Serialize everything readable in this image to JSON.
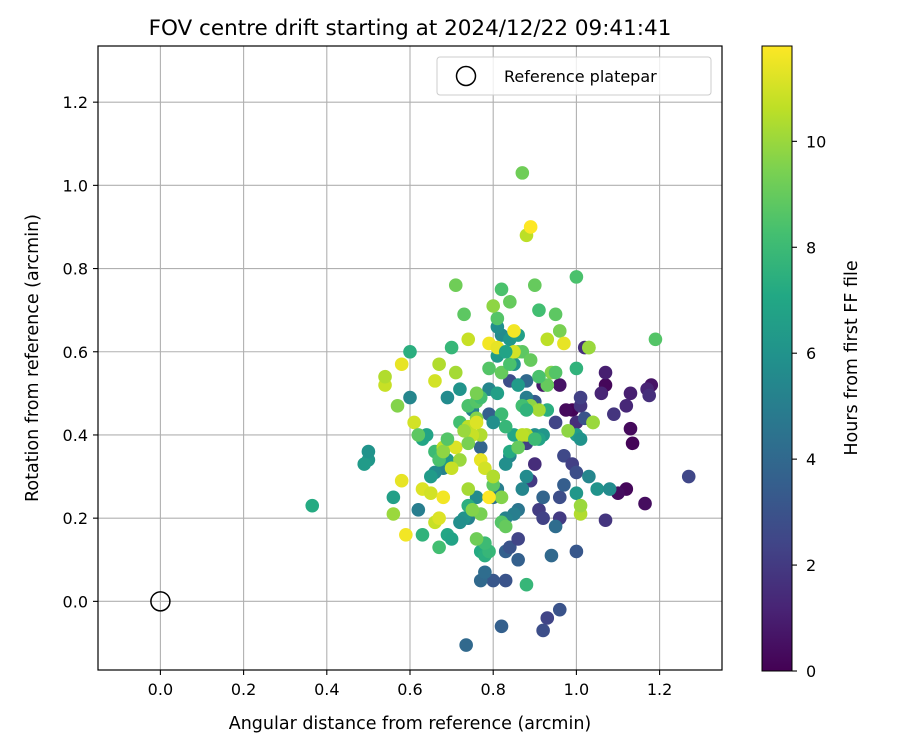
{
  "chart_data": {
    "type": "scatter",
    "title": "FOV centre drift starting at 2024/12/22 09:41:41",
    "xlabel": "Angular distance from reference (arcmin)",
    "ylabel": "Rotation from reference (arcmin)",
    "xlim": [
      -0.15,
      1.35
    ],
    "ylim": [
      -0.165,
      1.335
    ],
    "xticks": [
      "0.0",
      "0.2",
      "0.4",
      "0.6",
      "0.8",
      "1.0",
      "1.2"
    ],
    "yticks": [
      "0.0",
      "0.2",
      "0.4",
      "0.6",
      "0.8",
      "1.0",
      "1.2"
    ],
    "grid": true,
    "legend": {
      "position": "top-right",
      "entries": [
        "Reference platepar"
      ]
    },
    "reference_point": {
      "x": 0.0,
      "y": 0.0,
      "label": "Reference platepar"
    },
    "colorbar": {
      "label": "Hours from first FF file",
      "colormap": "viridis",
      "range": [
        0,
        11.8
      ],
      "ticks": [
        "0",
        "2",
        "4",
        "6",
        "8",
        "10"
      ]
    },
    "points": [
      [
        0.99,
        0.46,
        0.1
      ],
      [
        0.975,
        0.46,
        0.3
      ],
      [
        1.07,
        0.52,
        0.2
      ],
      [
        1.12,
        0.27,
        0.2
      ],
      [
        1.135,
        0.38,
        0.1
      ],
      [
        1.13,
        0.415,
        0.3
      ],
      [
        1.18,
        0.52,
        0.6
      ],
      [
        1.165,
        0.235,
        0.4
      ],
      [
        1.07,
        0.55,
        1.0
      ],
      [
        1.06,
        0.5,
        1.2
      ],
      [
        1.13,
        0.5,
        1.0
      ],
      [
        1.12,
        0.47,
        1.3
      ],
      [
        1.09,
        0.45,
        1.8
      ],
      [
        1.17,
        0.51,
        1.2
      ],
      [
        1.175,
        0.495,
        1.6
      ],
      [
        0.92,
        0.52,
        0.8
      ],
      [
        0.96,
        0.52,
        0.6
      ],
      [
        1.01,
        0.47,
        1.8
      ],
      [
        1.0,
        0.43,
        1.5
      ],
      [
        1.1,
        0.26,
        0.4
      ],
      [
        1.27,
        0.3,
        2.5
      ],
      [
        1.07,
        0.195,
        1.8
      ],
      [
        0.96,
        0.2,
        2.0
      ],
      [
        0.91,
        0.22,
        2.1
      ],
      [
        0.92,
        0.2,
        2.3
      ],
      [
        0.89,
        0.29,
        2.0
      ],
      [
        0.9,
        0.33,
        1.5
      ],
      [
        0.88,
        0.38,
        2.2
      ],
      [
        0.95,
        0.43,
        2.4
      ],
      [
        0.97,
        0.35,
        2.6
      ],
      [
        0.99,
        0.33,
        2.2
      ],
      [
        1.0,
        0.31,
        2.8
      ],
      [
        1.02,
        0.44,
        3.0
      ],
      [
        1.01,
        0.49,
        2.2
      ],
      [
        1.02,
        0.61,
        1.6
      ],
      [
        0.92,
        -0.07,
        2.8
      ],
      [
        0.93,
        -0.04,
        2.4
      ],
      [
        0.96,
        -0.02,
        3.0
      ],
      [
        0.82,
        -0.06,
        3.6
      ],
      [
        0.735,
        -0.105,
        4.0
      ],
      [
        0.83,
        0.05,
        3.0
      ],
      [
        0.8,
        0.05,
        3.2
      ],
      [
        0.77,
        0.05,
        4.0
      ],
      [
        0.78,
        0.07,
        4.2
      ],
      [
        0.83,
        0.12,
        3.6
      ],
      [
        0.84,
        0.13,
        3.0
      ],
      [
        0.86,
        0.15,
        2.4
      ],
      [
        0.86,
        0.1,
        3.6
      ],
      [
        0.94,
        0.11,
        4.0
      ],
      [
        1.0,
        0.12,
        3.2
      ],
      [
        0.92,
        0.25,
        3.8
      ],
      [
        0.96,
        0.25,
        2.8
      ],
      [
        0.97,
        0.28,
        3.5
      ],
      [
        0.95,
        0.18,
        4.2
      ],
      [
        0.9,
        0.48,
        3.4
      ],
      [
        0.88,
        0.53,
        4.0
      ],
      [
        0.84,
        0.53,
        2.8
      ],
      [
        0.79,
        0.45,
        3.6
      ],
      [
        0.77,
        0.37,
        3.8
      ],
      [
        0.8,
        0.3,
        4.2
      ],
      [
        0.8,
        0.25,
        4.4
      ],
      [
        0.81,
        0.27,
        5.0
      ],
      [
        0.86,
        0.22,
        4.6
      ],
      [
        0.85,
        0.21,
        5.0
      ],
      [
        0.83,
        0.2,
        5.2
      ],
      [
        0.87,
        0.27,
        5.4
      ],
      [
        0.88,
        0.3,
        5.6
      ],
      [
        0.84,
        0.35,
        5.4
      ],
      [
        0.83,
        0.33,
        5.8
      ],
      [
        0.76,
        0.25,
        5.6
      ],
      [
        0.74,
        0.2,
        5.2
      ],
      [
        0.73,
        0.2,
        6.0
      ],
      [
        0.72,
        0.19,
        5.8
      ],
      [
        0.68,
        0.32,
        5.2
      ],
      [
        0.66,
        0.31,
        5.6
      ],
      [
        0.65,
        0.3,
        6.4
      ],
      [
        0.62,
        0.22,
        5.0
      ],
      [
        0.6,
        0.49,
        5.4
      ],
      [
        0.69,
        0.34,
        6.2
      ],
      [
        0.69,
        0.49,
        5.6
      ],
      [
        0.72,
        0.51,
        6.0
      ],
      [
        0.75,
        0.46,
        5.2
      ],
      [
        0.79,
        0.51,
        5.4
      ],
      [
        0.81,
        0.59,
        6.4
      ],
      [
        0.82,
        0.64,
        5.6
      ],
      [
        0.81,
        0.66,
        5.8
      ],
      [
        0.84,
        0.63,
        6.2
      ],
      [
        0.86,
        0.64,
        6.6
      ],
      [
        0.85,
        0.57,
        6.0
      ],
      [
        0.86,
        0.52,
        6.4
      ],
      [
        0.88,
        0.49,
        5.0
      ],
      [
        0.9,
        0.4,
        5.8
      ],
      [
        0.92,
        0.4,
        6.2
      ],
      [
        0.91,
        0.39,
        6.8
      ],
      [
        0.85,
        0.4,
        7.0
      ],
      [
        0.84,
        0.36,
        7.2
      ],
      [
        0.93,
        0.46,
        7.4
      ],
      [
        1.0,
        0.4,
        6.4
      ],
      [
        1.01,
        0.39,
        6.0
      ],
      [
        1.0,
        0.56,
        7.6
      ],
      [
        1.03,
        0.3,
        5.4
      ],
      [
        1.0,
        0.26,
        6.2
      ],
      [
        1.05,
        0.27,
        6.0
      ],
      [
        1.08,
        0.27,
        5.6
      ],
      [
        0.88,
        0.04,
        7.8
      ],
      [
        0.77,
        0.12,
        7.2
      ],
      [
        0.78,
        0.11,
        7.4
      ],
      [
        0.79,
        0.12,
        7.8
      ],
      [
        0.78,
        0.14,
        8.0
      ],
      [
        0.82,
        0.19,
        8.6
      ],
      [
        0.74,
        0.23,
        7.4
      ],
      [
        0.69,
        0.16,
        7.0
      ],
      [
        0.7,
        0.15,
        6.8
      ],
      [
        0.67,
        0.13,
        8.2
      ],
      [
        0.63,
        0.16,
        7.6
      ],
      [
        0.63,
        0.39,
        7.0
      ],
      [
        0.64,
        0.4,
        6.8
      ],
      [
        0.56,
        0.25,
        6.6
      ],
      [
        0.5,
        0.34,
        6.2
      ],
      [
        0.49,
        0.33,
        6.4
      ],
      [
        0.5,
        0.36,
        6.0
      ],
      [
        0.365,
        0.23,
        7.2
      ],
      [
        0.6,
        0.6,
        7.4
      ],
      [
        0.7,
        0.61,
        7.8
      ],
      [
        0.66,
        0.36,
        8.0
      ],
      [
        0.67,
        0.34,
        8.4
      ],
      [
        0.72,
        0.43,
        8.2
      ],
      [
        0.74,
        0.47,
        8.4
      ],
      [
        0.76,
        0.48,
        8.6
      ],
      [
        0.77,
        0.49,
        8.2
      ],
      [
        0.79,
        0.56,
        8.6
      ],
      [
        0.82,
        0.55,
        9.0
      ],
      [
        0.84,
        0.57,
        8.4
      ],
      [
        0.86,
        0.6,
        9.2
      ],
      [
        0.87,
        0.6,
        8.8
      ],
      [
        0.89,
        0.58,
        9.0
      ],
      [
        0.9,
        0.76,
        9.0
      ],
      [
        0.91,
        0.7,
        8.2
      ],
      [
        0.95,
        0.69,
        8.8
      ],
      [
        0.96,
        0.65,
        9.4
      ],
      [
        0.94,
        0.55,
        9.6
      ],
      [
        0.95,
        0.55,
        8.6
      ],
      [
        0.93,
        0.52,
        9.0
      ],
      [
        0.91,
        0.54,
        8.4
      ],
      [
        0.89,
        0.47,
        9.8
      ],
      [
        0.91,
        0.46,
        10.2
      ],
      [
        0.82,
        0.25,
        9.6
      ],
      [
        0.8,
        0.28,
        8.8
      ],
      [
        0.77,
        0.21,
        9.4
      ],
      [
        0.75,
        0.22,
        9.6
      ],
      [
        0.76,
        0.15,
        9.2
      ],
      [
        0.83,
        0.18,
        9.0
      ],
      [
        0.88,
        0.88,
        10.6
      ],
      [
        0.87,
        1.03,
        9.2
      ],
      [
        0.84,
        0.72,
        9.0
      ],
      [
        0.82,
        0.75,
        8.4
      ],
      [
        0.81,
        0.68,
        8.6
      ],
      [
        0.8,
        0.71,
        9.8
      ],
      [
        0.71,
        0.76,
        9.2
      ],
      [
        0.73,
        0.69,
        8.8
      ],
      [
        1.0,
        0.78,
        8.4
      ],
      [
        1.03,
        0.61,
        9.6
      ],
      [
        0.98,
        0.41,
        9.8
      ],
      [
        1.04,
        0.43,
        10.2
      ],
      [
        1.04,
        0.43,
        10.0
      ],
      [
        1.19,
        0.63,
        8.6
      ],
      [
        0.88,
        0.4,
        10.4
      ],
      [
        0.87,
        0.4,
        10.6
      ],
      [
        0.77,
        0.4,
        10.4
      ],
      [
        0.74,
        0.42,
        10.6
      ],
      [
        0.75,
        0.4,
        10.8
      ],
      [
        0.68,
        0.37,
        10.6
      ],
      [
        0.71,
        0.37,
        11.2
      ],
      [
        0.72,
        0.34,
        10.0
      ],
      [
        0.7,
        0.32,
        10.8
      ],
      [
        0.68,
        0.36,
        9.8
      ],
      [
        0.61,
        0.43,
        11.0
      ],
      [
        0.57,
        0.47,
        9.6
      ],
      [
        0.54,
        0.52,
        10.8
      ],
      [
        0.54,
        0.54,
        10.4
      ],
      [
        0.58,
        0.57,
        11.4
      ],
      [
        0.66,
        0.53,
        11.0
      ],
      [
        0.67,
        0.57,
        10.4
      ],
      [
        0.71,
        0.55,
        10.2
      ],
      [
        0.74,
        0.63,
        10.8
      ],
      [
        0.79,
        0.62,
        11.6
      ],
      [
        0.81,
        0.61,
        11.4
      ],
      [
        0.85,
        0.6,
        11.0
      ],
      [
        0.85,
        0.65,
        11.6
      ],
      [
        0.89,
        0.9,
        11.8
      ],
      [
        0.93,
        0.63,
        10.6
      ],
      [
        0.97,
        0.62,
        11.4
      ],
      [
        1.03,
        0.61,
        10.0
      ],
      [
        0.56,
        0.21,
        10.0
      ],
      [
        0.58,
        0.29,
        11.4
      ],
      [
        0.59,
        0.16,
        11.6
      ],
      [
        0.63,
        0.27,
        11.2
      ],
      [
        0.65,
        0.26,
        11.0
      ],
      [
        0.66,
        0.19,
        10.8
      ],
      [
        0.67,
        0.2,
        11.2
      ],
      [
        0.68,
        0.25,
        11.6
      ],
      [
        0.74,
        0.27,
        10.2
      ],
      [
        0.77,
        0.34,
        11.4
      ],
      [
        0.78,
        0.32,
        11.0
      ],
      [
        0.79,
        0.25,
        11.8
      ],
      [
        0.8,
        0.3,
        10.4
      ],
      [
        0.74,
        0.38,
        9.4
      ],
      [
        0.73,
        0.41,
        10.0
      ],
      [
        0.76,
        0.44,
        9.6
      ],
      [
        0.76,
        0.5,
        9.4
      ],
      [
        1.01,
        0.21,
        10.4
      ],
      [
        1.01,
        0.23,
        10.0
      ],
      [
        0.62,
        0.4,
        8.8
      ],
      [
        0.76,
        0.43,
        11.2
      ],
      [
        0.86,
        0.37,
        9.0
      ],
      [
        0.87,
        0.47,
        8.2
      ],
      [
        0.88,
        0.46,
        7.6
      ],
      [
        0.9,
        0.39,
        8.0
      ],
      [
        0.69,
        0.39,
        8.6
      ],
      [
        0.83,
        0.42,
        7.8
      ],
      [
        0.82,
        0.45,
        8.0
      ],
      [
        0.8,
        0.43,
        5.8
      ],
      [
        0.81,
        0.5,
        6.6
      ],
      [
        0.83,
        0.6,
        6.8
      ]
    ]
  }
}
